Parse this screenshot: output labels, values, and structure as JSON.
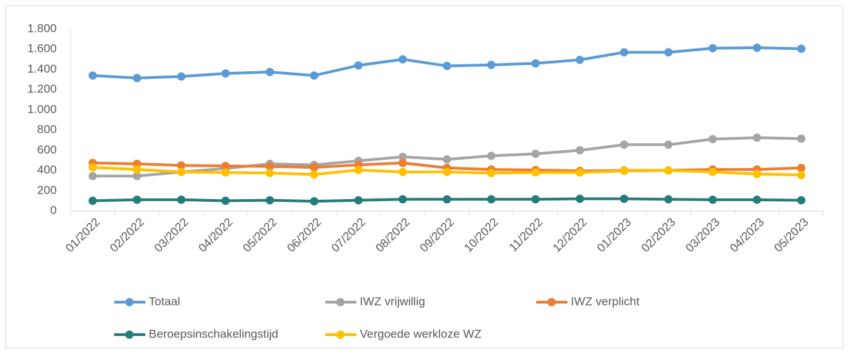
{
  "chart_data": {
    "type": "line",
    "categories": [
      "01/2022",
      "02/2022",
      "03/2022",
      "04/2022",
      "05/2022",
      "06/2022",
      "07/2022",
      "08/2022",
      "09/2022",
      "10/2022",
      "11/2022",
      "12/2022",
      "01/2023",
      "02/2023",
      "03/2023",
      "04/2023",
      "05/2023"
    ],
    "series": [
      {
        "name": "Totaal",
        "color": "#5b9bd5",
        "values": [
          1340,
          1315,
          1330,
          1360,
          1375,
          1340,
          1440,
          1500,
          1435,
          1445,
          1460,
          1495,
          1570,
          1570,
          1610,
          1615,
          1605
        ]
      },
      {
        "name": "IWZ vrijwillig",
        "color": "#a5a5a5",
        "values": [
          345,
          345,
          385,
          420,
          465,
          455,
          495,
          535,
          510,
          545,
          565,
          600,
          655,
          655,
          710,
          725,
          715
        ]
      },
      {
        "name": "IWZ verplicht",
        "color": "#ed7d31",
        "values": [
          475,
          465,
          450,
          445,
          440,
          430,
          455,
          475,
          425,
          410,
          405,
          395,
          400,
          400,
          410,
          410,
          425
        ]
      },
      {
        "name": "Beroepsinschakelingstijd",
        "color": "#267c7c",
        "values": [
          100,
          110,
          110,
          100,
          105,
          95,
          105,
          115,
          115,
          115,
          115,
          120,
          120,
          115,
          110,
          110,
          105
        ]
      },
      {
        "name": "Vergoede werkloze WZ",
        "color": "#ffc000",
        "values": [
          430,
          410,
          385,
          380,
          375,
          360,
          405,
          385,
          385,
          375,
          380,
          380,
          395,
          400,
          385,
          365,
          355
        ]
      }
    ],
    "ylim": [
      0,
      1800
    ],
    "yticks": [
      0,
      200,
      400,
      600,
      800,
      {
        "value": 1000,
        "label": "1.000"
      },
      {
        "value": 1200,
        "label": "1.200"
      },
      {
        "value": 1400,
        "label": "1.400"
      },
      {
        "value": 1600,
        "label": "1.600"
      },
      {
        "value": 1800,
        "label": "1.800"
      }
    ],
    "grid": false,
    "legend": "bottom"
  }
}
